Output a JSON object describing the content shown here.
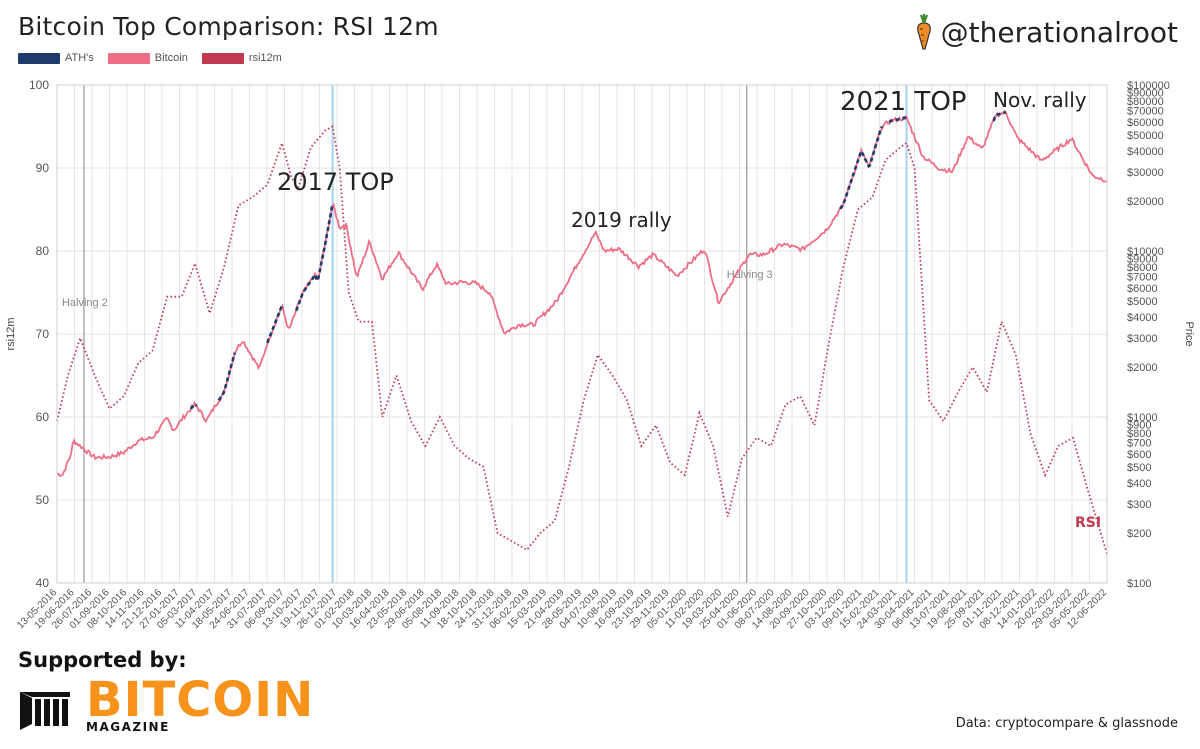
{
  "title": "Bitcoin Top Comparison: RSI 12m",
  "handle": "@therationalroot",
  "legend": [
    {
      "label": "ATH's",
      "color": "#1c3a6b"
    },
    {
      "label": "Bitcoin",
      "color": "#ee6e85"
    },
    {
      "label": "rsi12m",
      "color": "#c0394f"
    }
  ],
  "colors": {
    "price": "#ee6e85",
    "ath": "#1c3a6b",
    "rsi": "#c0394f",
    "top_line": "#a8d1f0",
    "halving_line": "#999999",
    "grid": "#e6e6e6"
  },
  "supported_by": "Supported by:",
  "logo": {
    "word": "BITCOIN",
    "sub": "MAGAZINE"
  },
  "source": "Data: cryptocompare & glassnode",
  "chart_data": {
    "type": "line",
    "title": "Bitcoin Top Comparison: RSI 12m",
    "ylabel": "rsi12m",
    "y2label": "Price",
    "ylim": [
      40,
      100
    ],
    "y2lim": [
      100,
      100000
    ],
    "y2scale": "log",
    "yticks": [
      "40",
      "50",
      "60",
      "70",
      "80",
      "90",
      "100"
    ],
    "y2ticks": [
      "$100",
      "$200",
      "$300",
      "$400",
      "$500",
      "$600",
      "$700",
      "$800",
      "$900",
      "$1000",
      "$2000",
      "$3000",
      "$4000",
      "$5000",
      "$6000",
      "$7000",
      "$8000",
      "$9000",
      "$10000",
      "$20000",
      "$30000",
      "$40000",
      "$50000",
      "$60000",
      "$70000",
      "$80000",
      "$90000",
      "$100000"
    ],
    "x_range": [
      "2016-05-13",
      "2022-06-12"
    ],
    "xticks": [
      "13-05-2016",
      "19-06-2016",
      "26-07-2016",
      "01-09-2016",
      "08-10-2016",
      "14-11-2016",
      "21-12-2016",
      "27-01-2017",
      "05-03-2017",
      "11-04-2017",
      "18-05-2017",
      "24-06-2017",
      "31-07-2017",
      "06-09-2017",
      "13-10-2017",
      "19-11-2017",
      "26-12-2017",
      "01-02-2018",
      "10-03-2018",
      "16-04-2018",
      "23-05-2018",
      "29-06-2018",
      "05-08-2018",
      "11-09-2018",
      "18-10-2018",
      "24-11-2018",
      "31-12-2018",
      "06-02-2019",
      "15-03-2019",
      "21-04-2019",
      "28-05-2019",
      "04-07-2019",
      "10-08-2019",
      "16-09-2019",
      "23-10-2019",
      "29-11-2019",
      "05-01-2020",
      "11-02-2020",
      "19-03-2020",
      "25-04-2020",
      "01-06-2020",
      "08-07-2020",
      "14-08-2020",
      "20-09-2020",
      "27-10-2020",
      "03-12-2020",
      "09-01-2021",
      "15-02-2021",
      "24-03-2021",
      "30-04-2021",
      "06-06-2021",
      "13-07-2021",
      "19-08-2021",
      "25-09-2021",
      "01-11-2021",
      "08-12-2021",
      "14-01-2022",
      "20-02-2022",
      "29-03-2022",
      "05-05-2022",
      "12-06-2022"
    ],
    "vlines": [
      {
        "date": "2016-07-09",
        "label": "Halving 2",
        "kind": "halving"
      },
      {
        "date": "2017-12-17",
        "label": "",
        "kind": "top"
      },
      {
        "date": "2020-05-11",
        "label": "Halving 3",
        "kind": "halving"
      },
      {
        "date": "2021-04-14",
        "label": "",
        "kind": "top"
      }
    ],
    "annotations": [
      {
        "text": "2017 TOP",
        "date": "2017-11-01",
        "value": 1
      },
      {
        "text": "2019 rally",
        "date": "2019-06-26",
        "value": 2
      },
      {
        "text": "2021 TOP",
        "date": "2021-03-01",
        "value": 3
      },
      {
        "text": "Nov. rally",
        "date": "2021-11-10",
        "value": 4
      },
      {
        "text": "RSI",
        "date": "2022-05-15",
        "value": 5
      }
    ],
    "series": [
      {
        "name": "rsi12m",
        "style": "dotted",
        "points": [
          [
            "2016-05-13",
            59.5
          ],
          [
            "2016-06-05",
            65
          ],
          [
            "2016-07-01",
            69.5
          ],
          [
            "2016-08-01",
            65
          ],
          [
            "2016-09-01",
            61
          ],
          [
            "2016-10-01",
            62.5
          ],
          [
            "2016-11-01",
            66.5
          ],
          [
            "2016-12-01",
            68
          ],
          [
            "2017-01-01",
            74.5
          ],
          [
            "2017-02-01",
            74.5
          ],
          [
            "2017-03-01",
            78.5
          ],
          [
            "2017-04-01",
            72.5
          ],
          [
            "2017-05-01",
            78
          ],
          [
            "2017-06-01",
            85.5
          ],
          [
            "2017-07-01",
            86.5
          ],
          [
            "2017-08-01",
            88
          ],
          [
            "2017-09-01",
            93
          ],
          [
            "2017-09-20",
            89
          ],
          [
            "2017-10-05",
            87.5
          ],
          [
            "2017-11-01",
            92.5
          ],
          [
            "2017-12-01",
            94.5
          ],
          [
            "2017-12-17",
            95
          ],
          [
            "2018-01-01",
            90
          ],
          [
            "2018-01-20",
            75
          ],
          [
            "2018-02-10",
            71.5
          ],
          [
            "2018-03-10",
            71.5
          ],
          [
            "2018-04-01",
            60
          ],
          [
            "2018-05-01",
            65
          ],
          [
            "2018-06-01",
            59.5
          ],
          [
            "2018-07-01",
            56.5
          ],
          [
            "2018-08-01",
            60
          ],
          [
            "2018-09-01",
            56.5
          ],
          [
            "2018-10-01",
            55
          ],
          [
            "2018-11-01",
            54
          ],
          [
            "2018-12-01",
            46
          ],
          [
            "2019-01-01",
            45
          ],
          [
            "2019-02-01",
            44
          ],
          [
            "2019-03-01",
            46
          ],
          [
            "2019-04-01",
            47.5
          ],
          [
            "2019-05-01",
            54
          ],
          [
            "2019-06-01",
            62
          ],
          [
            "2019-07-01",
            67.5
          ],
          [
            "2019-08-01",
            65
          ],
          [
            "2019-09-01",
            62
          ],
          [
            "2019-10-01",
            56.5
          ],
          [
            "2019-11-01",
            59
          ],
          [
            "2019-12-01",
            54.5
          ],
          [
            "2020-01-01",
            53
          ],
          [
            "2020-02-01",
            60.5
          ],
          [
            "2020-03-01",
            56.5
          ],
          [
            "2020-04-01",
            48
          ],
          [
            "2020-05-01",
            55
          ],
          [
            "2020-06-01",
            57.5
          ],
          [
            "2020-07-01",
            56.5
          ],
          [
            "2020-08-01",
            61.5
          ],
          [
            "2020-09-01",
            62.5
          ],
          [
            "2020-10-01",
            59
          ],
          [
            "2020-11-01",
            69
          ],
          [
            "2020-12-01",
            78
          ],
          [
            "2021-01-01",
            85
          ],
          [
            "2021-02-01",
            86.5
          ],
          [
            "2021-03-01",
            91
          ],
          [
            "2021-04-01",
            92.5
          ],
          [
            "2021-04-14",
            93
          ],
          [
            "2021-05-01",
            90
          ],
          [
            "2021-06-01",
            62
          ],
          [
            "2021-07-01",
            59.5
          ],
          [
            "2021-08-01",
            63
          ],
          [
            "2021-09-01",
            66
          ],
          [
            "2021-10-01",
            63
          ],
          [
            "2021-11-01",
            71.5
          ],
          [
            "2021-12-01",
            67.5
          ],
          [
            "2022-01-01",
            58
          ],
          [
            "2022-02-01",
            53
          ],
          [
            "2022-03-01",
            56.5
          ],
          [
            "2022-04-01",
            57.5
          ],
          [
            "2022-05-01",
            51.5
          ],
          [
            "2022-06-12",
            43.5
          ]
        ]
      },
      {
        "name": "Bitcoin",
        "style": "solid",
        "unit": "USD",
        "points": [
          [
            "2016-05-13",
            455
          ],
          [
            "2016-05-25",
            450
          ],
          [
            "2016-06-10",
            580
          ],
          [
            "2016-06-17",
            720
          ],
          [
            "2016-07-01",
            670
          ],
          [
            "2016-08-01",
            570
          ],
          [
            "2016-09-01",
            575
          ],
          [
            "2016-10-01",
            610
          ],
          [
            "2016-11-01",
            720
          ],
          [
            "2016-12-01",
            750
          ],
          [
            "2017-01-01",
            980
          ],
          [
            "2017-01-15",
            830
          ],
          [
            "2017-02-01",
            970
          ],
          [
            "2017-03-01",
            1200
          ],
          [
            "2017-03-25",
            950
          ],
          [
            "2017-04-15",
            1200
          ],
          [
            "2017-05-01",
            1400
          ],
          [
            "2017-05-25",
            2500
          ],
          [
            "2017-06-10",
            2900
          ],
          [
            "2017-07-15",
            1950
          ],
          [
            "2017-08-01",
            2800
          ],
          [
            "2017-09-01",
            4700
          ],
          [
            "2017-09-15",
            3300
          ],
          [
            "2017-10-15",
            5600
          ],
          [
            "2017-11-10",
            7200
          ],
          [
            "2017-11-15",
            6500
          ],
          [
            "2017-12-01",
            10900
          ],
          [
            "2017-12-17",
            19300
          ],
          [
            "2018-01-01",
            13800
          ],
          [
            "2018-01-15",
            14300
          ],
          [
            "2018-02-06",
            6900
          ],
          [
            "2018-03-05",
            11400
          ],
          [
            "2018-04-01",
            6800
          ],
          [
            "2018-05-05",
            9800
          ],
          [
            "2018-06-25",
            5900
          ],
          [
            "2018-07-25",
            8300
          ],
          [
            "2018-08-15",
            6300
          ],
          [
            "2018-09-15",
            6500
          ],
          [
            "2018-10-15",
            6400
          ],
          [
            "2018-11-15",
            5600
          ],
          [
            "2018-12-15",
            3200
          ],
          [
            "2019-01-15",
            3600
          ],
          [
            "2019-02-15",
            3600
          ],
          [
            "2019-04-05",
            5000
          ],
          [
            "2019-05-15",
            8000
          ],
          [
            "2019-06-26",
            12900
          ],
          [
            "2019-07-15",
            10000
          ],
          [
            "2019-08-15",
            10300
          ],
          [
            "2019-09-25",
            8100
          ],
          [
            "2019-10-26",
            9500
          ],
          [
            "2019-12-15",
            7100
          ],
          [
            "2020-02-12",
            10300
          ],
          [
            "2020-03-12",
            4900
          ],
          [
            "2020-04-15",
            6900
          ],
          [
            "2020-05-15",
            9500
          ],
          [
            "2020-06-15",
            9500
          ],
          [
            "2020-07-27",
            11000
          ],
          [
            "2020-09-05",
            10200
          ],
          [
            "2020-10-27",
            13500
          ],
          [
            "2020-12-01",
            19000
          ],
          [
            "2021-01-08",
            40000
          ],
          [
            "2021-01-25",
            32000
          ],
          [
            "2021-02-20",
            56000
          ],
          [
            "2021-03-13",
            61000
          ],
          [
            "2021-04-14",
            63500
          ],
          [
            "2021-05-19",
            37000
          ],
          [
            "2021-06-22",
            31500
          ],
          [
            "2021-07-20",
            30000
          ],
          [
            "2021-08-22",
            49000
          ],
          [
            "2021-09-21",
            41000
          ],
          [
            "2021-10-20",
            66000
          ],
          [
            "2021-11-10",
            68500
          ],
          [
            "2021-12-04",
            48000
          ],
          [
            "2022-01-24",
            35000
          ],
          [
            "2022-03-29",
            47500
          ],
          [
            "2022-05-12",
            28500
          ],
          [
            "2022-06-12",
            26500
          ]
        ]
      },
      {
        "name": "ATH's",
        "style": "dashed",
        "ranges": [
          [
            "2017-02-20",
            "2017-03-05"
          ],
          [
            "2017-04-20",
            "2017-05-25"
          ],
          [
            "2017-08-01",
            "2017-09-01"
          ],
          [
            "2017-10-01",
            "2017-12-17"
          ],
          [
            "2020-11-25",
            "2021-02-22"
          ],
          [
            "2021-03-08",
            "2021-04-14"
          ],
          [
            "2021-10-15",
            "2021-11-10"
          ]
        ]
      }
    ]
  }
}
